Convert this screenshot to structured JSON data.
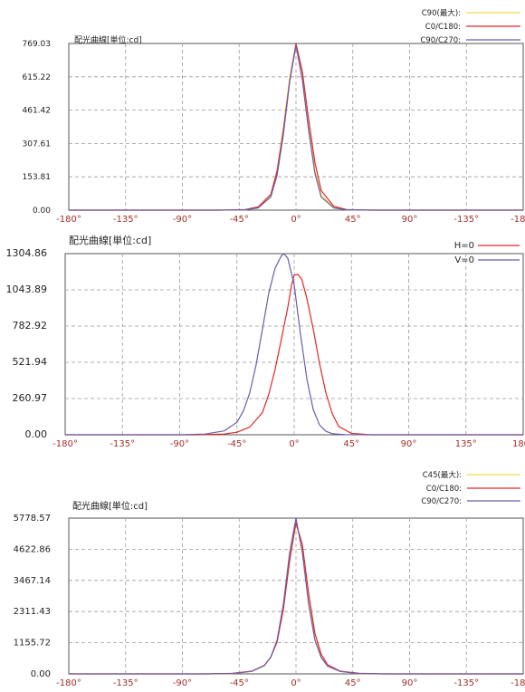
{
  "colors": {
    "red": "#e0282a",
    "purple": "#6a5ea8",
    "yellow": "#f2dc50",
    "axis_label": "#a0302a",
    "frame": "#555555",
    "grid": "#999999"
  },
  "chart_data": [
    {
      "type": "line",
      "title": "配光曲線[単位:cd]",
      "x_ticks": [
        "-180°",
        "-135°",
        "-90°",
        "-45°",
        "0°",
        "45°",
        "90°",
        "-135°",
        "-180°"
      ],
      "y_ticks": [
        "769.03",
        "615.22",
        "461.42",
        "307.61",
        "153.81",
        "0.00"
      ],
      "xlim": [
        -180,
        180
      ],
      "ylim": [
        0,
        769.03
      ],
      "legend": [
        {
          "label": "C90(最大):",
          "color": "#f2dc50"
        },
        {
          "label": "C0/C180:",
          "color": "#e0282a"
        },
        {
          "label": "C90/C270:",
          "color": "#6a5ea8"
        }
      ],
      "series": [
        {
          "name": "C90(最大):",
          "color": "#f2dc50",
          "x": [
            -180,
            -60,
            -40,
            -30,
            -20,
            -15,
            -10,
            -5,
            0,
            5,
            10,
            15,
            20,
            30,
            40,
            60,
            180
          ],
          "y": [
            0,
            0,
            2,
            12,
            70,
            185,
            380,
            610,
            765,
            610,
            380,
            185,
            70,
            12,
            2,
            0,
            0
          ]
        },
        {
          "name": "C0/C180:",
          "color": "#e0282a",
          "x": [
            -180,
            -60,
            -40,
            -30,
            -20,
            -15,
            -10,
            -5,
            0,
            5,
            10,
            15,
            20,
            30,
            40,
            60,
            180
          ],
          "y": [
            0,
            0,
            3,
            15,
            72,
            180,
            370,
            595,
            769,
            640,
            420,
            220,
            90,
            18,
            3,
            0,
            0
          ]
        },
        {
          "name": "C90/C270:",
          "color": "#6a5ea8",
          "x": [
            -180,
            -60,
            -40,
            -30,
            -20,
            -15,
            -10,
            -5,
            0,
            5,
            10,
            15,
            20,
            30,
            40,
            60,
            180
          ],
          "y": [
            0,
            0,
            2,
            10,
            60,
            160,
            350,
            590,
            760,
            600,
            370,
            170,
            60,
            10,
            2,
            0,
            0
          ]
        }
      ]
    },
    {
      "type": "line",
      "title": "配光曲線[単位:cd]",
      "x_ticks": [
        "-180°",
        "-135°",
        "-90°",
        "-45°",
        "0°",
        "45°",
        "90°",
        "135°",
        "180°"
      ],
      "y_ticks": [
        "1304.86",
        "1043.89",
        "782.92",
        "521.94",
        "260.97",
        "0.00"
      ],
      "xlim": [
        -180,
        180
      ],
      "ylim": [
        0,
        1304.86
      ],
      "legend": [
        {
          "label": "H=0",
          "color": "#e0282a"
        },
        {
          "label": "V=0",
          "color": "#6a5ea8"
        }
      ],
      "series": [
        {
          "name": "H=0",
          "color": "#e0282a",
          "x": [
            -180,
            -75,
            -55,
            -45,
            -35,
            -25,
            -20,
            -15,
            -10,
            -5,
            -2,
            0,
            3,
            6,
            10,
            15,
            20,
            25,
            30,
            35,
            45,
            60,
            180
          ],
          "y": [
            0,
            0,
            5,
            18,
            55,
            160,
            290,
            470,
            690,
            920,
            1080,
            1150,
            1155,
            1120,
            980,
            760,
            510,
            300,
            150,
            60,
            10,
            0,
            0
          ]
        },
        {
          "name": "V=0",
          "color": "#6a5ea8",
          "x": [
            -180,
            -90,
            -70,
            -55,
            -45,
            -40,
            -35,
            -30,
            -25,
            -20,
            -15,
            -10,
            -8,
            -5,
            0,
            5,
            10,
            15,
            20,
            25,
            30,
            40,
            60,
            180
          ],
          "y": [
            0,
            0,
            5,
            28,
            90,
            170,
            300,
            500,
            760,
            1020,
            1200,
            1290,
            1304,
            1270,
            1080,
            720,
            400,
            180,
            70,
            25,
            8,
            1,
            0,
            0
          ]
        }
      ]
    },
    {
      "type": "line",
      "title": "配光曲線[単位:cd]",
      "x_ticks": [
        "-180°",
        "-135°",
        "-90°",
        "-45°",
        "0°",
        "45°",
        "90°",
        "-135°",
        "-180°"
      ],
      "y_ticks": [
        "5778.57",
        "4622.86",
        "3467.14",
        "2311.43",
        "1155.72",
        "0.00"
      ],
      "xlim": [
        -180,
        180
      ],
      "ylim": [
        0,
        5778.57
      ],
      "legend": [
        {
          "label": "C45(最大):",
          "color": "#f2dc50"
        },
        {
          "label": "C0/C180:",
          "color": "#e0282a"
        },
        {
          "label": "C90/C270:",
          "color": "#6a5ea8"
        }
      ],
      "series": [
        {
          "name": "C45(最大):",
          "color": "#f2dc50",
          "x": [
            -180,
            -70,
            -50,
            -35,
            -25,
            -20,
            -15,
            -10,
            -5,
            0,
            5,
            10,
            15,
            20,
            25,
            35,
            50,
            70,
            180
          ],
          "y": [
            0,
            0,
            15,
            90,
            300,
            600,
            1200,
            2500,
            4300,
            5620,
            4600,
            2700,
            1300,
            620,
            300,
            90,
            15,
            0,
            0
          ]
        },
        {
          "name": "C0/C180:",
          "color": "#e0282a",
          "x": [
            -180,
            -70,
            -50,
            -35,
            -25,
            -20,
            -15,
            -10,
            -5,
            0,
            5,
            10,
            15,
            20,
            25,
            35,
            50,
            70,
            180
          ],
          "y": [
            0,
            0,
            20,
            100,
            320,
            620,
            1180,
            2400,
            4200,
            5600,
            4800,
            3000,
            1500,
            720,
            340,
            100,
            20,
            0,
            0
          ]
        },
        {
          "name": "C90/C270:",
          "color": "#6a5ea8",
          "x": [
            -180,
            -70,
            -50,
            -35,
            -25,
            -20,
            -15,
            -10,
            -5,
            0,
            5,
            10,
            15,
            20,
            25,
            35,
            50,
            70,
            180
          ],
          "y": [
            0,
            0,
            18,
            95,
            310,
            620,
            1250,
            2600,
            4500,
            5778,
            4500,
            2600,
            1250,
            600,
            290,
            90,
            15,
            0,
            0
          ]
        }
      ]
    }
  ]
}
